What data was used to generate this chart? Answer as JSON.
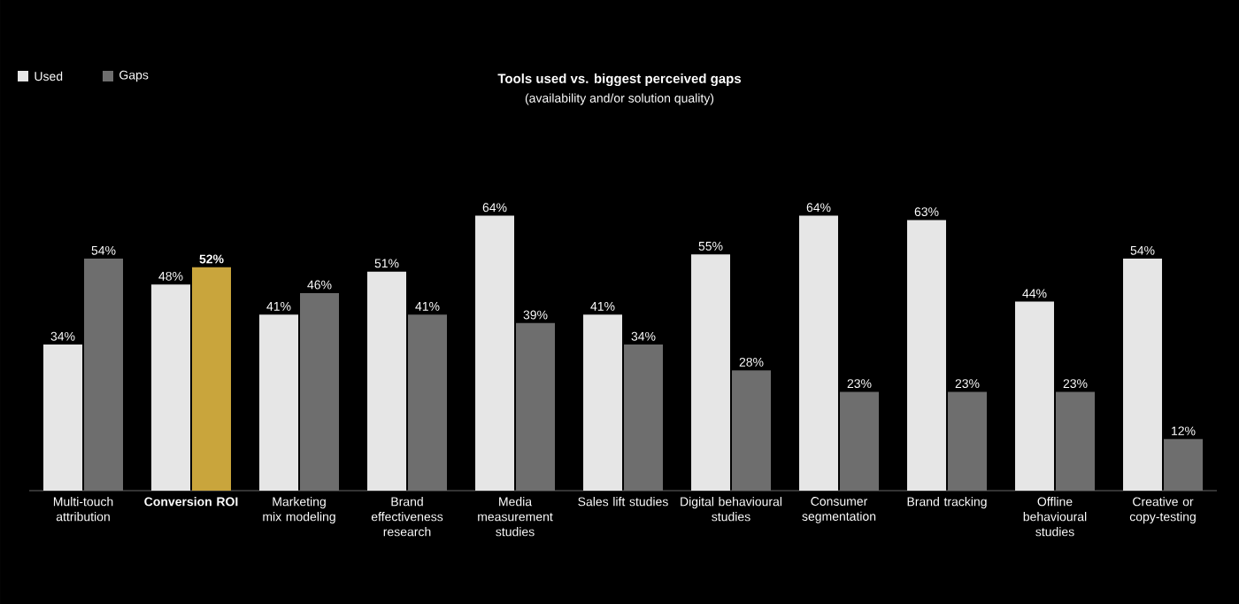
{
  "chart_data": {
    "type": "bar",
    "title": "Tools used vs. biggest perceived gaps",
    "subtitle": "(availability and/or solution quality)",
    "categories": [
      "Multi-touch attribution",
      "**Conversion ROI**",
      "Marketing mix modeling",
      "Brand effectiveness research",
      "Media measurement studies",
      "Sales lift studies",
      "Digital behavioural studies",
      "Consumer segmentation",
      "Brand tracking",
      "Offline behavioural studies",
      "Creative or copy-testing"
    ],
    "series": [
      {
        "name": "Used",
        "color": "#e6e6e6",
        "values": [
          34,
          48,
          41,
          51,
          64,
          41,
          55,
          64,
          63,
          44,
          54
        ],
        "value_labels": [
          "34%",
          "48%",
          "41%",
          "51%",
          "64%",
          "41%",
          "55%",
          "64%",
          "63%",
          "44%",
          "54%"
        ]
      },
      {
        "name": "Gaps",
        "color": "#6e6e6e",
        "colors": [
          "#6e6e6e",
          "#c9a53c",
          "#6e6e6e",
          "#6e6e6e",
          "#6e6e6e",
          "#6e6e6e",
          "#6e6e6e",
          "#6e6e6e",
          "#6e6e6e",
          "#6e6e6e",
          "#6e6e6e"
        ],
        "values": [
          54,
          52,
          46,
          41,
          39,
          34,
          28,
          23,
          23,
          23,
          12
        ],
        "value_labels": [
          "54%",
          "**52%**",
          "46%",
          "41%",
          "39%",
          "34%",
          "28%",
          "23%",
          "23%",
          "23%",
          "12%"
        ]
      }
    ],
    "legend": "top left",
    "grid": false
  }
}
